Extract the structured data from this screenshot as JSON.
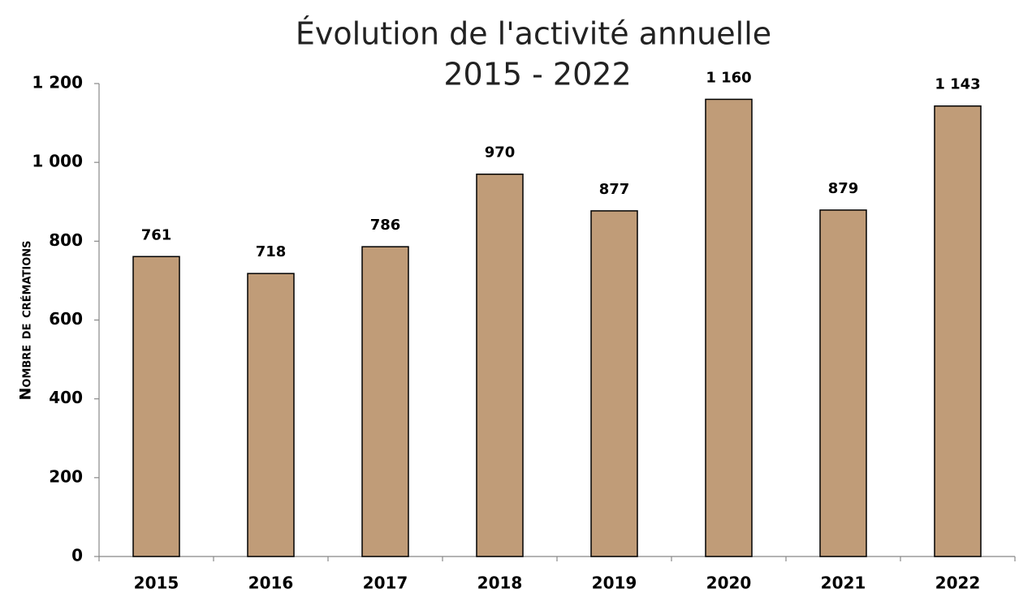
{
  "chart_data": {
    "type": "bar",
    "title": "Évolution de l'activité annuelle",
    "subtitle": "2015 - 2022",
    "y_label": "Nombre de crémations",
    "categories": [
      "2015",
      "2016",
      "2017",
      "2018",
      "2019",
      "2020",
      "2021",
      "2022"
    ],
    "values": [
      761,
      718,
      786,
      970,
      877,
      1160,
      879,
      1143
    ],
    "value_labels": [
      "761",
      "718",
      "786",
      "970",
      "877",
      "1 160",
      "879",
      "1 143"
    ],
    "color": "#c09c78",
    "ylim": [
      0,
      1200
    ],
    "yticks": [
      0,
      200,
      400,
      600,
      800,
      {
        "value": 1000,
        "label": "1 000"
      },
      {
        "value": 1200,
        "label": "1 200"
      }
    ],
    "grid": false
  }
}
